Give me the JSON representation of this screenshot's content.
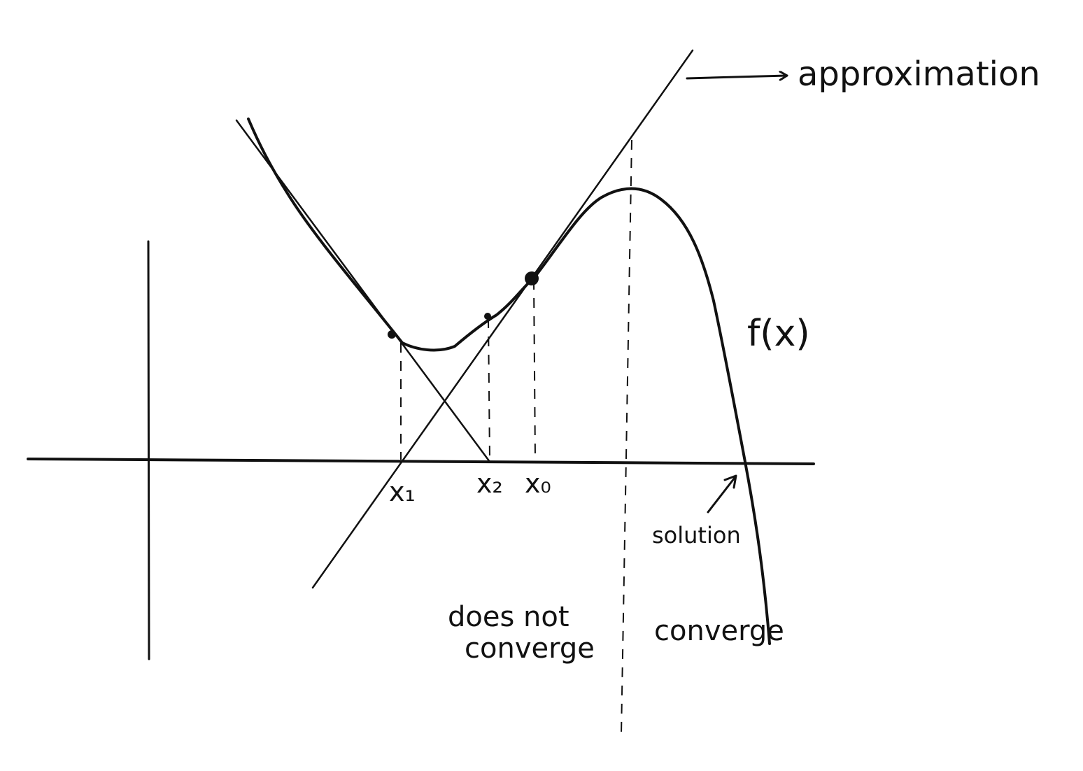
{
  "labels": {
    "approximation": "approximation",
    "function": "f(x)",
    "x1": "x₁",
    "x2": "x₂",
    "x0": "x₀",
    "solution": "solution",
    "does_not_converge": [
      "does not",
      "converge"
    ],
    "converge": "converge"
  }
}
